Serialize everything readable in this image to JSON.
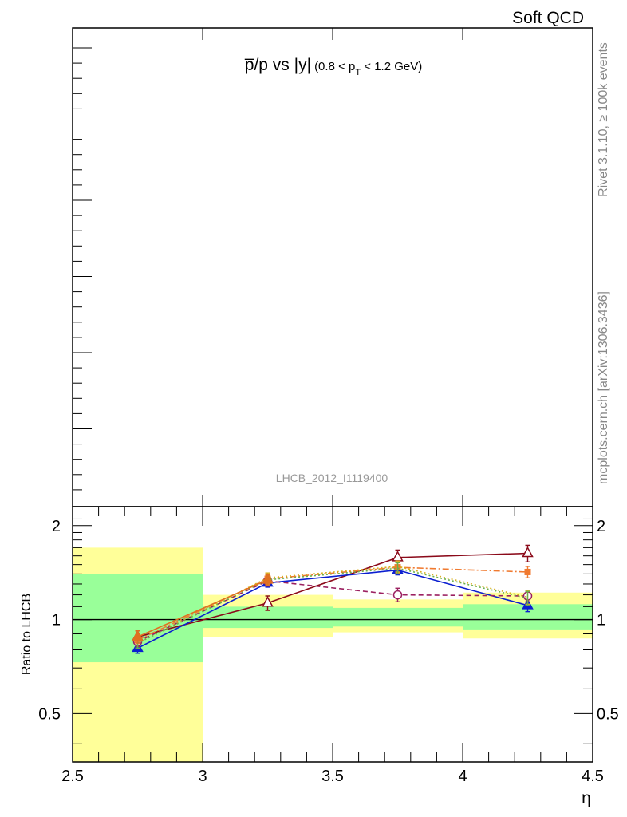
{
  "header": {
    "category": "Soft QCD",
    "side_label_top": "Rivet 3.1.10, ≥ 100k events",
    "side_label_bottom": "mcplots.cern.ch [arXiv:1306.3436]",
    "analysis_id": "LHCB_2012_I1119400"
  },
  "chart_data": [
    {
      "type": "line",
      "panel": "main",
      "title": {
        "main": "p̅/p vs |y|",
        "range_prefix": "(0.8 < p",
        "range_sub": "T",
        "range_suffix": " < 1.2 GeV)"
      },
      "series": []
    },
    {
      "type": "line",
      "panel": "ratio",
      "xlabel": "η",
      "ylabel": "Ratio to LHCB",
      "xlim": [
        2.5,
        4.5
      ],
      "ylim": [
        0.35,
        2.3
      ],
      "yscale": "log",
      "x_ticks": [
        "2.5",
        "3",
        "3.5",
        "4",
        "4.5"
      ],
      "y_ticks": [
        "0.5",
        "1",
        "2"
      ],
      "bins": [
        {
          "x_low": 2.5,
          "x_high": 3.0,
          "green": [
            0.73,
            1.4
          ],
          "yellow": [
            0.35,
            1.7
          ]
        },
        {
          "x_low": 3.0,
          "x_high": 3.5,
          "green": [
            0.94,
            1.1
          ],
          "yellow": [
            0.88,
            1.2
          ]
        },
        {
          "x_low": 3.5,
          "x_high": 4.0,
          "green": [
            0.95,
            1.09
          ],
          "yellow": [
            0.91,
            1.16
          ]
        },
        {
          "x_low": 4.0,
          "x_high": 4.5,
          "green": [
            0.93,
            1.12
          ],
          "yellow": [
            0.87,
            1.22
          ]
        }
      ],
      "series": [
        {
          "color": "#8b0a1a",
          "style": "solid",
          "marker": "triangle-open",
          "x": [
            2.75,
            3.25,
            3.75,
            4.25
          ],
          "y": [
            0.88,
            1.13,
            1.58,
            1.63
          ],
          "err": [
            0.04,
            0.06,
            0.09,
            0.1
          ]
        },
        {
          "color": "#0b1fd0",
          "style": "solid",
          "marker": "triangle-filled",
          "x": [
            2.75,
            3.25,
            3.75,
            4.25
          ],
          "y": [
            0.81,
            1.31,
            1.44,
            1.11
          ],
          "err": [
            0.03,
            0.04,
            0.05,
            0.05
          ]
        },
        {
          "color": "#9b2060",
          "style": "dashed",
          "marker": "circle-open",
          "x": [
            2.75,
            3.25,
            3.75,
            4.25
          ],
          "y": [
            0.85,
            1.33,
            1.2,
            1.19
          ],
          "err": [
            0.03,
            0.05,
            0.06,
            0.05
          ]
        },
        {
          "color": "#f07a30",
          "style": "dashdot",
          "marker": "square-filled",
          "x": [
            2.75,
            3.25,
            3.75,
            4.25
          ],
          "y": [
            0.86,
            1.35,
            1.47,
            1.42
          ],
          "err": [
            0.03,
            0.05,
            0.06,
            0.06
          ]
        },
        {
          "color": "#d8b020",
          "style": "dotted",
          "marker": "none",
          "x": [
            2.75,
            3.25,
            3.75,
            4.25
          ],
          "y": [
            0.84,
            1.36,
            1.48,
            1.18
          ],
          "err": [
            0.03,
            0.05,
            0.06,
            0.06
          ]
        },
        {
          "color": "#6ab04c",
          "style": "dotted",
          "marker": "none",
          "x": [
            2.75,
            3.25,
            3.75,
            4.25
          ],
          "y": [
            0.84,
            1.34,
            1.46,
            1.17
          ],
          "err": [
            0.03,
            0.05,
            0.06,
            0.06
          ]
        },
        {
          "color": "#e07020",
          "style": "solid",
          "marker": "triangle-filled",
          "x": [
            2.75,
            3.25
          ],
          "y": [
            0.88,
            1.34
          ],
          "err": [
            0.04,
            0.05
          ]
        }
      ]
    }
  ],
  "colors": {
    "band_green": "#99ff99",
    "band_yellow": "#ffff99",
    "axis": "#000000",
    "side_text": "#888888"
  }
}
